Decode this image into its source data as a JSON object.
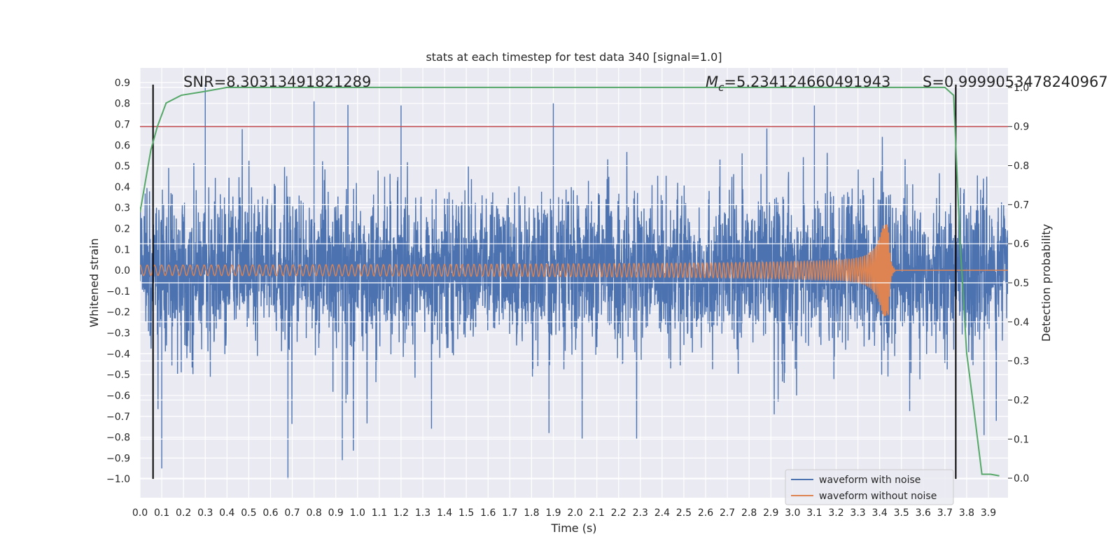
{
  "chart_data": {
    "type": "line",
    "title": "stats at each timestep for test data 340 [signal=1.0]",
    "xlabel": "Time (s)",
    "ylabel": "Whitened strain",
    "y2label": "Detection probability",
    "xlim": [
      0.0,
      3.99
    ],
    "ylim": [
      -1.09,
      0.97
    ],
    "y2lim": [
      -0.05,
      1.05
    ],
    "x_ticks": [
      0.0,
      0.1,
      0.2,
      0.3,
      0.4,
      0.5,
      0.6,
      0.7,
      0.8,
      0.9,
      1.0,
      1.1,
      1.2,
      1.3,
      1.4,
      1.5,
      1.6,
      1.7,
      1.8,
      1.9,
      2.0,
      2.1,
      2.2,
      2.3,
      2.4,
      2.5,
      2.6,
      2.7,
      2.8,
      2.9,
      3.0,
      3.1,
      3.2,
      3.3,
      3.4,
      3.5,
      3.6,
      3.7,
      3.8,
      3.9
    ],
    "x_tick_labels": [
      "0.0",
      "0.1",
      "0.2",
      "0.3",
      "0.4",
      "0.5",
      "0.6",
      "0.7",
      "0.8",
      "0.9",
      "1.0",
      "1.1",
      "1.2",
      "1.3",
      "1.4",
      "1.5",
      "1.6",
      "1.7",
      "1.8",
      "1.9",
      "2.0",
      "2.1",
      "2.2",
      "2.3",
      "2.4",
      "2.5",
      "2.6",
      "2.7",
      "2.8",
      "2.9",
      "3.0",
      "3.1",
      "3.2",
      "3.3",
      "3.4",
      "3.5",
      "3.6",
      "3.7",
      "3.8",
      "3.9"
    ],
    "y_ticks": [
      0.9,
      0.8,
      0.7,
      0.6,
      0.5,
      0.4,
      0.3,
      0.2,
      0.1,
      0.0,
      -0.1,
      -0.2,
      -0.3,
      -0.4,
      -0.5,
      -0.6,
      -0.7,
      -0.8,
      -0.9,
      -1.0
    ],
    "y_tick_labels": [
      "0.9",
      "0.8",
      "0.7",
      "0.6",
      "0.5",
      "0.4",
      "0.3",
      "0.2",
      "0.1",
      "0.0",
      "−0.1",
      "−0.2",
      "−0.3",
      "−0.4",
      "−0.5",
      "−0.6",
      "−0.7",
      "−0.8",
      "−0.9",
      "−1.0"
    ],
    "y2_ticks": [
      1.0,
      0.9,
      0.8,
      0.7,
      0.6,
      0.5,
      0.4,
      0.3,
      0.2,
      0.1,
      0.0
    ],
    "y2_tick_labels": [
      "1.0",
      "0.9",
      "0.8",
      "0.7",
      "0.6",
      "0.5",
      "0.4",
      "0.3",
      "0.2",
      "0.1",
      "0.0"
    ],
    "grid": true,
    "legend_position": "bottom-right",
    "series": [
      {
        "name": "waveform with noise",
        "color": "#4c72b0",
        "axis": "left",
        "description": "noisy whitened strain, mostly within ±0.5 with spikes up to about ±1.0",
        "n_points": 4000,
        "typical_amplitude": 0.27,
        "peaks": [
          {
            "x": 0.3,
            "y": 0.89
          },
          {
            "x": 0.8,
            "y": 0.81
          },
          {
            "x": 1.2,
            "y": 0.79
          },
          {
            "x": 1.9,
            "y": 0.8
          },
          {
            "x": 3.1,
            "y": 0.79
          },
          {
            "x": 0.68,
            "y": -1.0
          },
          {
            "x": 0.93,
            "y": -0.91
          },
          {
            "x": 0.1,
            "y": -0.95
          },
          {
            "x": 1.88,
            "y": -0.78
          },
          {
            "x": 3.88,
            "y": -0.79
          }
        ]
      },
      {
        "name": "waveform without noise",
        "color": "#dd8452",
        "axis": "left",
        "description": "chirp: amplitude ~0.025 growing to ~0.22 near merger at t≈3.44 s, then ringdown to 0",
        "start_amplitude": 0.025,
        "merger_time": 3.44,
        "merger_amplitude": 0.22,
        "start_frequency_hz": 30,
        "end_frequency_hz": 160
      },
      {
        "name": "detection probability",
        "color": "#55a868",
        "axis": "right",
        "x": [
          0.0,
          0.05,
          0.08,
          0.12,
          0.19,
          0.3,
          0.4,
          0.5,
          1.0,
          2.0,
          3.0,
          3.6,
          3.7,
          3.74,
          3.77,
          3.8,
          3.83,
          3.87,
          3.91,
          3.95
        ],
        "y": [
          0.68,
          0.84,
          0.9,
          0.96,
          0.98,
          0.99,
          1.0,
          1.0,
          1.0,
          1.0,
          1.0,
          1.0,
          1.0,
          0.98,
          0.6,
          0.32,
          0.19,
          0.01,
          0.01,
          0.006
        ]
      }
    ],
    "threshold": {
      "axis": "right",
      "value": 0.9,
      "color": "#c44e52"
    },
    "vertical_markers": [
      {
        "x": 0.06,
        "y_from": -1.0,
        "y_to": 0.89,
        "color": "#000000"
      },
      {
        "x": 3.75,
        "y_from": -1.0,
        "y_to": 0.89,
        "color": "#000000"
      }
    ],
    "annotations": {
      "snr": "SNR=8.30313491821289",
      "mc_symbol": "M",
      "mc_sub": "c",
      "mc_value": "=5.234124660491943",
      "s": "S=0.9999053478240967"
    }
  }
}
